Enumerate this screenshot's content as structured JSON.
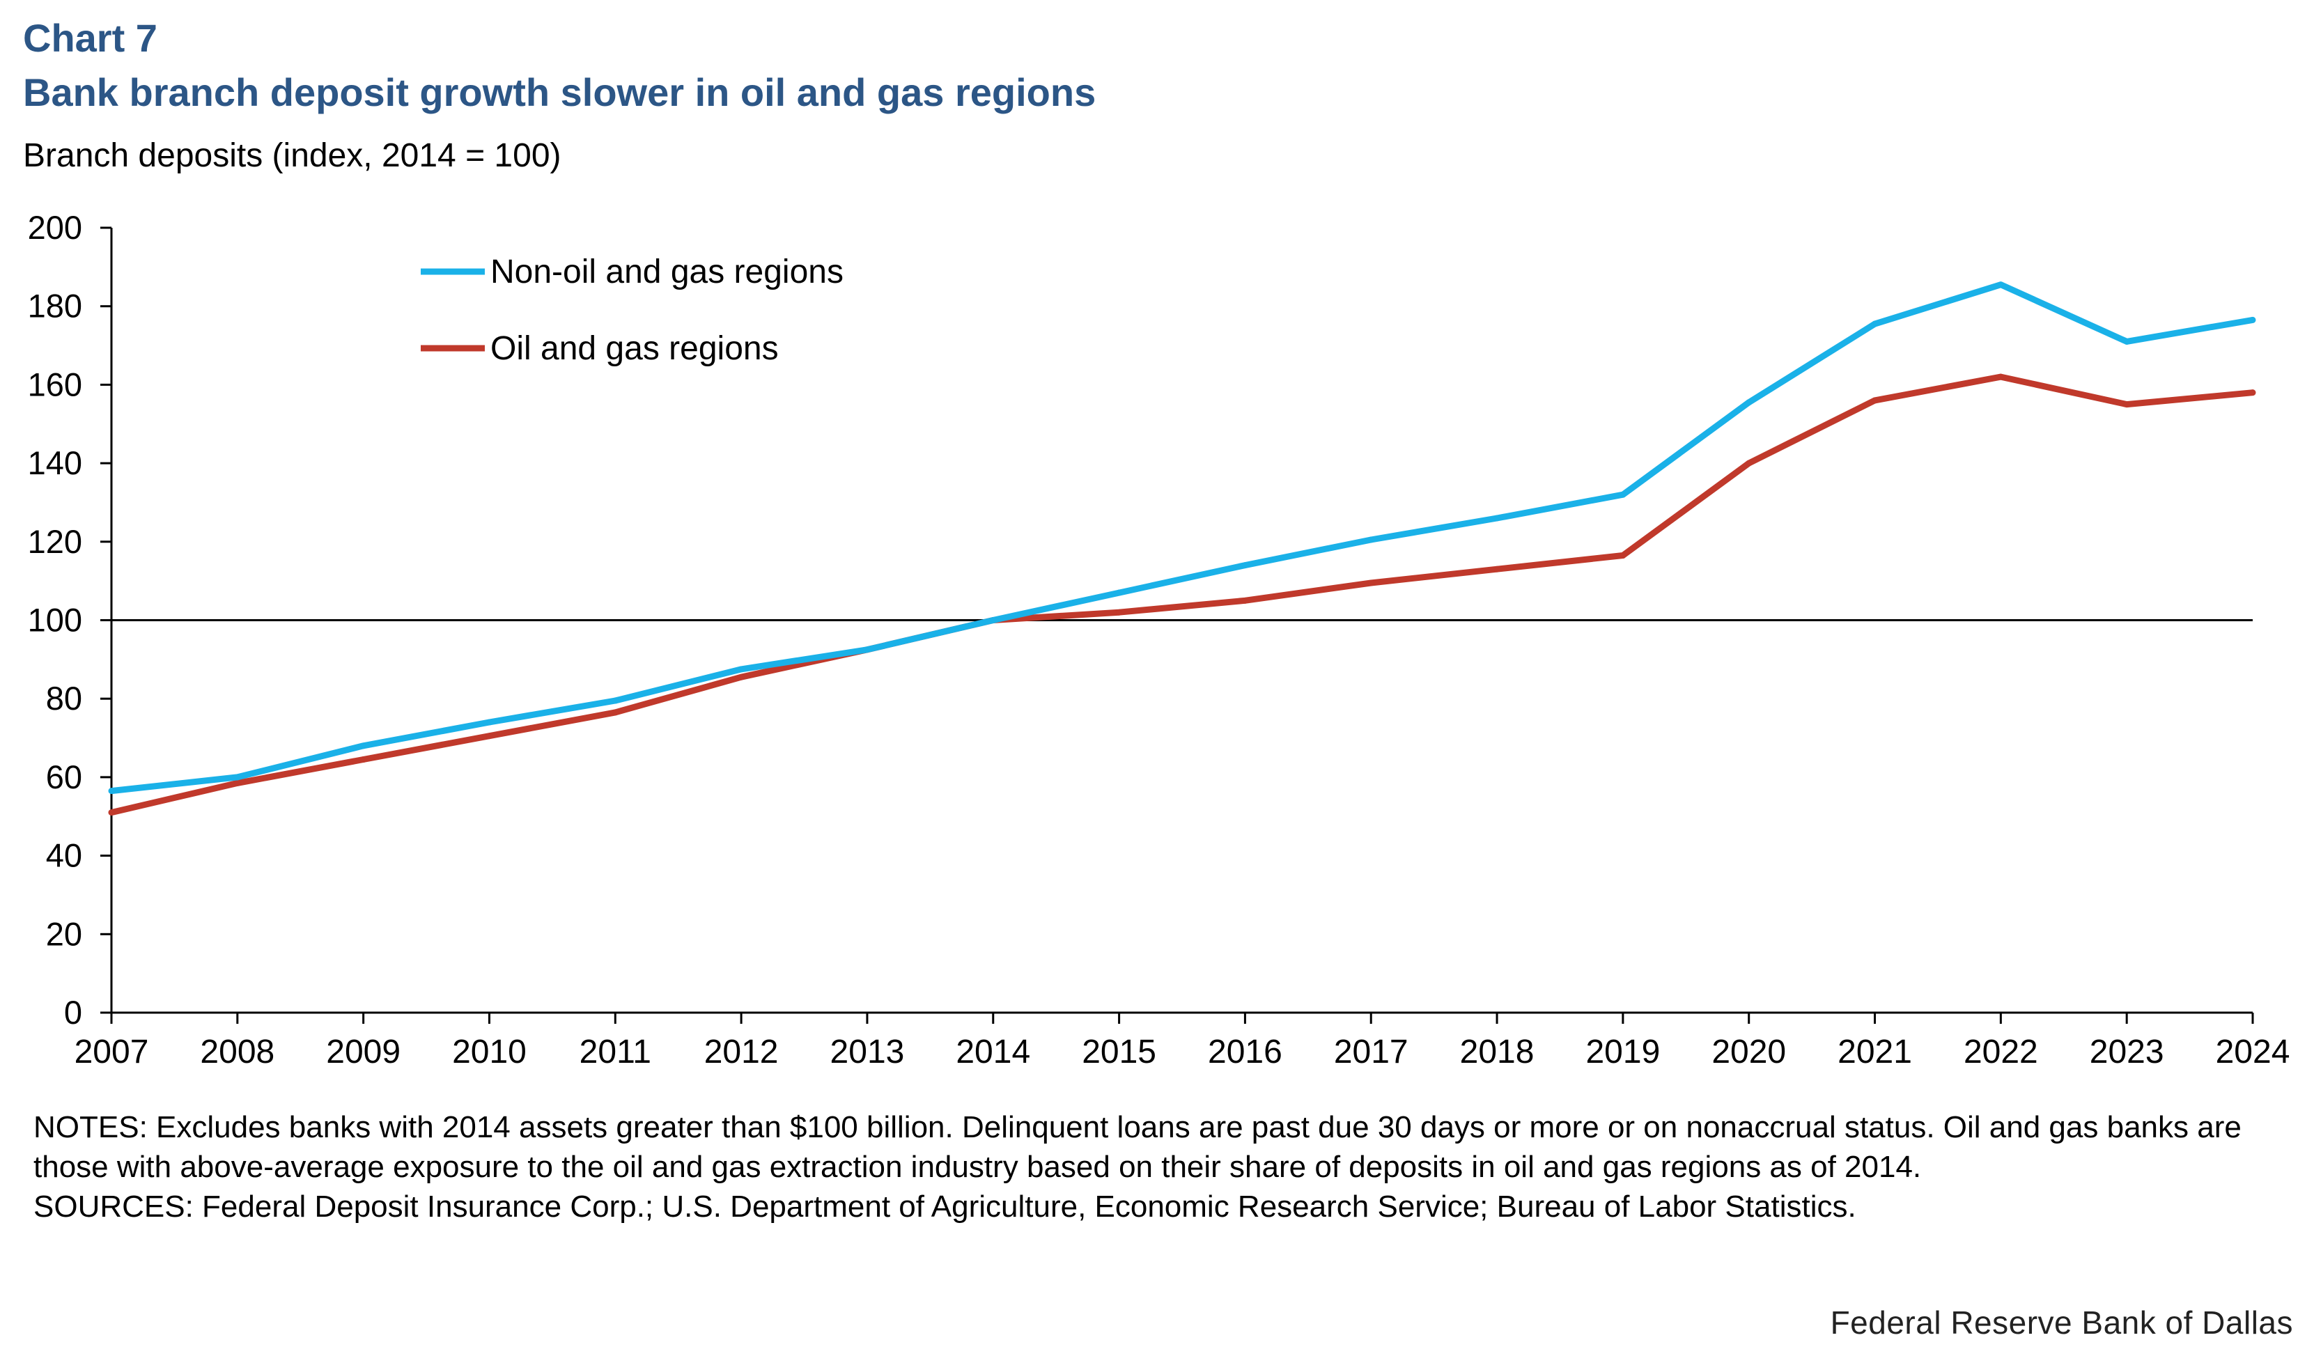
{
  "header": {
    "chart_number": "Chart 7",
    "title": "Bank branch deposit growth slower in oil and gas regions",
    "subtitle": "Branch deposits (index, 2014 = 100)"
  },
  "chart_data": {
    "type": "line",
    "title": "Bank branch deposit growth slower in oil and gas regions",
    "ylabel": "Branch deposits (index, 2014 = 100)",
    "xlabel": "",
    "x": [
      "2007",
      "2008",
      "2009",
      "2010",
      "2011",
      "2012",
      "2013",
      "2014",
      "2015",
      "2016",
      "2017",
      "2018",
      "2019",
      "2020",
      "2021",
      "2022",
      "2023",
      "2024"
    ],
    "ylim": [
      0,
      200
    ],
    "yticks": [
      "0",
      "20",
      "40",
      "60",
      "80",
      "100",
      "120",
      "140",
      "160",
      "180",
      "200"
    ],
    "reference_line": 100,
    "grid": false,
    "legend_position": "top-left",
    "series": [
      {
        "name": "Non-oil and gas regions",
        "color": "#1ab1e8",
        "values": [
          56.5,
          60,
          68,
          74,
          79.5,
          87.5,
          92.5,
          100,
          107,
          114,
          120.5,
          126,
          132,
          155.5,
          175.5,
          185.5,
          171,
          176.5
        ]
      },
      {
        "name": "Oil and gas regions",
        "color": "#c0392b",
        "values": [
          51,
          58.5,
          64.5,
          70.5,
          76.5,
          85.5,
          92.5,
          100,
          102,
          105,
          109.5,
          113,
          116.5,
          140,
          156,
          162,
          155,
          158
        ]
      }
    ]
  },
  "footer": {
    "notes": "NOTES: Excludes banks with 2014 assets greater than $100 billion. Delinquent loans are past due 30 days or more or on nonaccrual status. Oil and gas banks are those with above-average exposure to the oil and gas extraction industry based on their share of deposits in oil and gas regions as of 2014.",
    "sources": "SOURCES: Federal Deposit Insurance Corp.; U.S. Department of Agriculture, Economic Research Service; Bureau of Labor Statistics.",
    "credit": "Federal Reserve Bank of Dallas"
  }
}
